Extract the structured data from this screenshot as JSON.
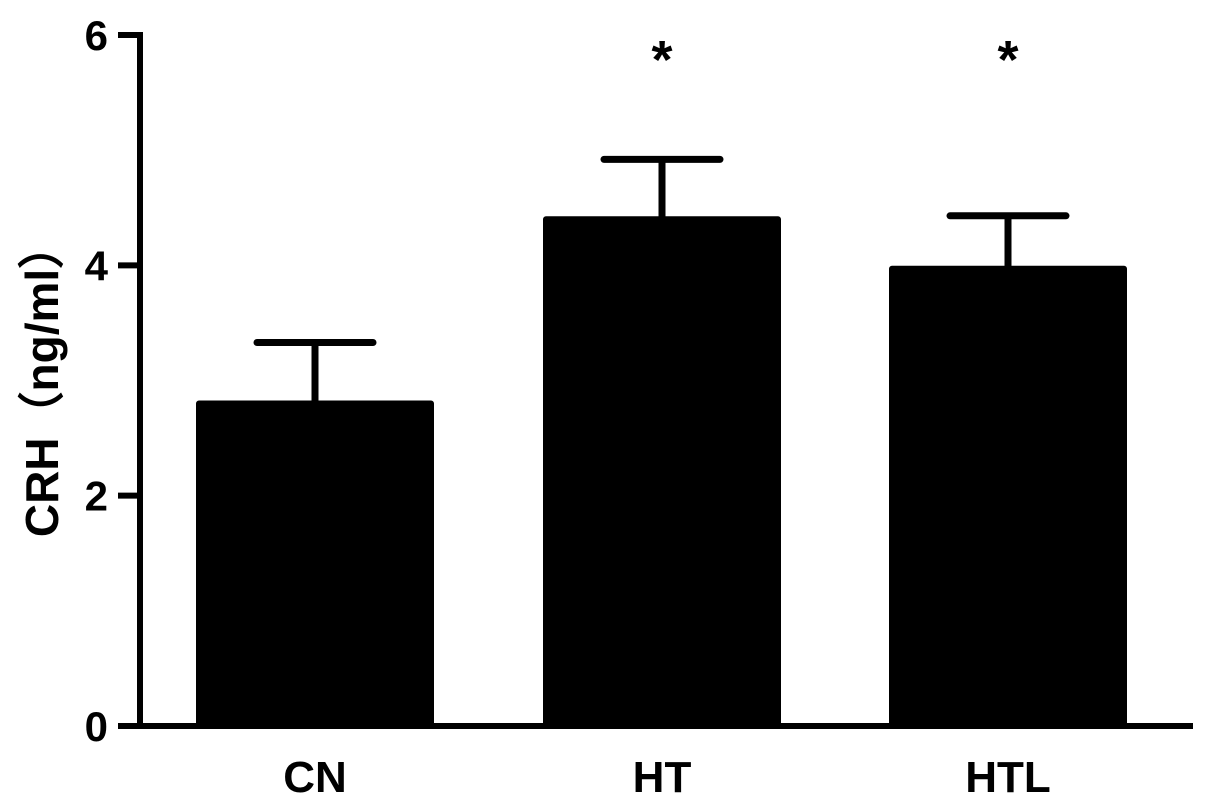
{
  "chart_data": {
    "type": "bar",
    "categories": [
      "CN",
      "HT",
      "HTL"
    ],
    "values": [
      2.8,
      4.4,
      3.97
    ],
    "error_bars": [
      0.53,
      0.52,
      0.46
    ],
    "annotations": [
      "",
      "*",
      "*"
    ],
    "ylabel": "CRH（ng/ml）",
    "xlabel": "",
    "ylim": [
      0,
      6
    ],
    "yticks": [
      0,
      2,
      4,
      6
    ],
    "ytick_labels": [
      "0",
      "2",
      "4",
      "6"
    ],
    "bar_color": "#000000",
    "grid": false
  }
}
